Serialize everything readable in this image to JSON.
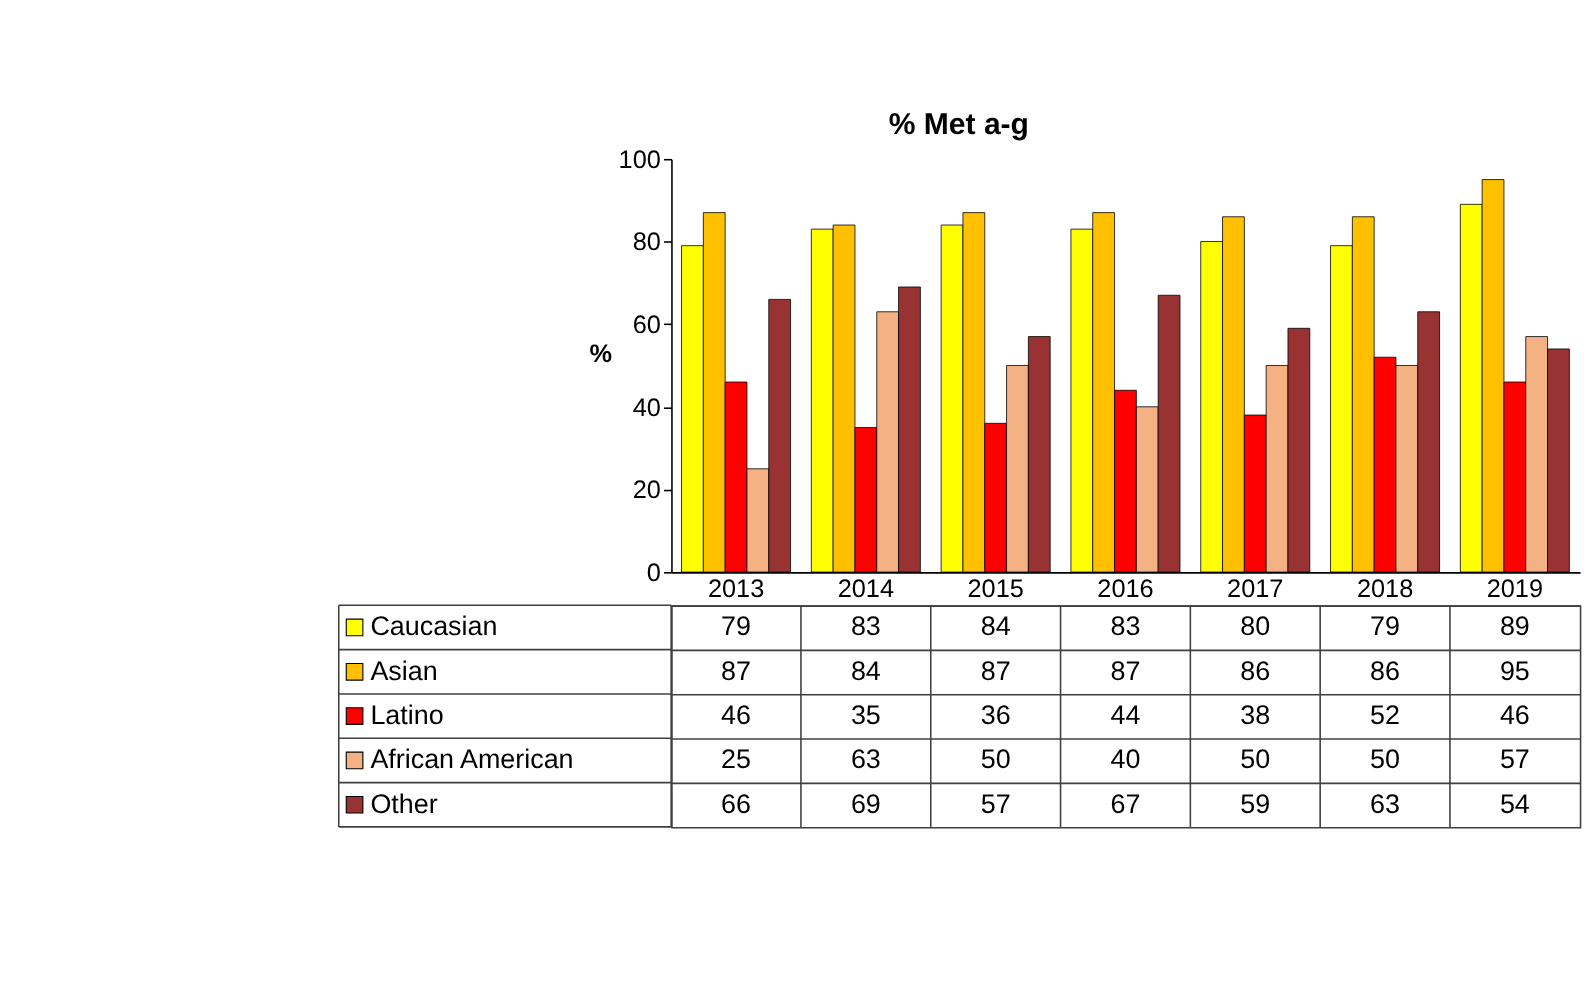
{
  "chart_data": {
    "type": "bar",
    "title": "% Met a-g",
    "ylabel": "%",
    "categories": [
      "2013",
      "2014",
      "2015",
      "2016",
      "2017",
      "2018",
      "2019"
    ],
    "series": [
      {
        "name": "Caucasian",
        "color": "#ffff00",
        "values": [
          79,
          83,
          84,
          83,
          80,
          79,
          89
        ]
      },
      {
        "name": "Asian",
        "color": "#ffc000",
        "values": [
          87,
          84,
          87,
          87,
          86,
          86,
          95
        ]
      },
      {
        "name": "Latino",
        "color": "#ff0000",
        "values": [
          46,
          35,
          36,
          44,
          38,
          52,
          46
        ]
      },
      {
        "name": "African American",
        "color": "#f4b183",
        "values": [
          25,
          63,
          50,
          40,
          50,
          50,
          57
        ]
      },
      {
        "name": "Other",
        "color": "#993333",
        "values": [
          66,
          69,
          57,
          67,
          59,
          63,
          54
        ]
      }
    ],
    "ylim": [
      0,
      100
    ],
    "yticks": [
      0,
      20,
      40,
      60,
      80,
      100
    ],
    "data_labels": true,
    "legend": "bottom"
  }
}
